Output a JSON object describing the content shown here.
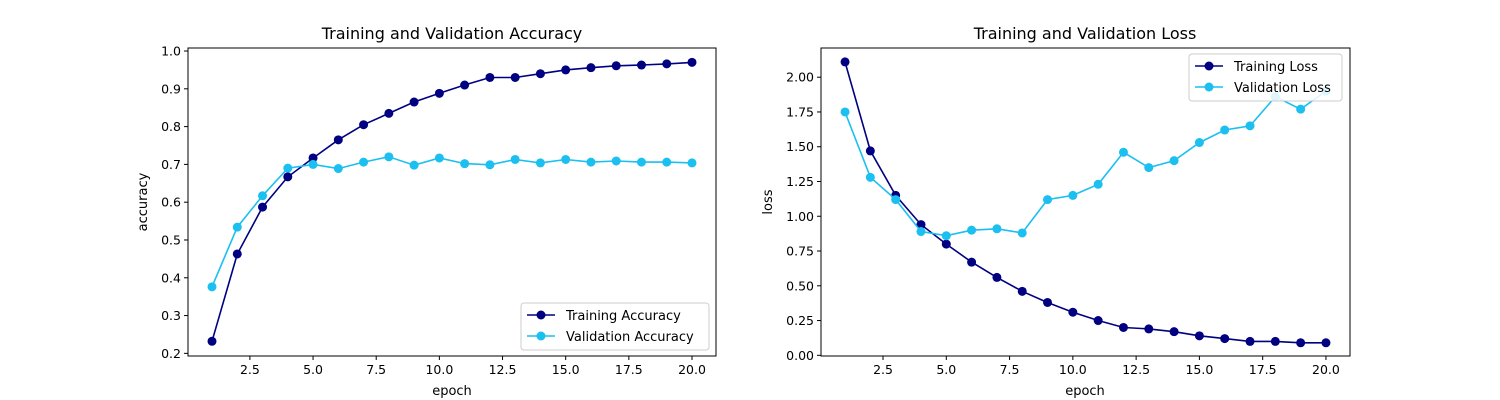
{
  "chart_data": [
    {
      "type": "line",
      "title": "Training and Validation Accuracy",
      "xlabel": "epoch",
      "ylabel": "accuracy",
      "xlim": [
        0.05,
        20.95
      ],
      "ylim": [
        0.193,
        1.008
      ],
      "xticks": [
        2.5,
        5.0,
        7.5,
        10.0,
        12.5,
        15.0,
        17.5,
        20.0
      ],
      "xtick_labels": [
        "2.5",
        "5.0",
        "7.5",
        "10.0",
        "12.5",
        "15.0",
        "17.5",
        "20.0"
      ],
      "yticks": [
        0.2,
        0.3,
        0.4,
        0.5,
        0.6,
        0.7,
        0.8,
        0.9,
        1.0
      ],
      "ytick_labels": [
        "0.2",
        "0.3",
        "0.4",
        "0.5",
        "0.6",
        "0.7",
        "0.8",
        "0.9",
        "1.0"
      ],
      "grid": false,
      "legend_position": "lower-right",
      "x": [
        1,
        2,
        3,
        4,
        5,
        6,
        7,
        8,
        9,
        10,
        11,
        12,
        13,
        14,
        15,
        16,
        17,
        18,
        19,
        20
      ],
      "series": [
        {
          "name": "Training Accuracy",
          "color": "#000080",
          "values": [
            0.232,
            0.463,
            0.587,
            0.667,
            0.717,
            0.765,
            0.805,
            0.835,
            0.865,
            0.888,
            0.91,
            0.93,
            0.93,
            0.94,
            0.95,
            0.956,
            0.961,
            0.963,
            0.966,
            0.97
          ]
        },
        {
          "name": "Validation Accuracy",
          "color": "#1bbff0",
          "values": [
            0.376,
            0.534,
            0.617,
            0.69,
            0.7,
            0.689,
            0.706,
            0.72,
            0.698,
            0.717,
            0.702,
            0.699,
            0.713,
            0.704,
            0.713,
            0.706,
            0.709,
            0.706,
            0.706,
            0.704
          ]
        }
      ]
    },
    {
      "type": "line",
      "title": "Training and Validation Loss",
      "xlabel": "epoch",
      "ylabel": "loss",
      "xlim": [
        0.05,
        20.95
      ],
      "ylim": [
        -0.005,
        2.21
      ],
      "xticks": [
        2.5,
        5.0,
        7.5,
        10.0,
        12.5,
        15.0,
        17.5,
        20.0
      ],
      "xtick_labels": [
        "2.5",
        "5.0",
        "7.5",
        "10.0",
        "12.5",
        "15.0",
        "17.5",
        "20.0"
      ],
      "yticks": [
        0.0,
        0.25,
        0.5,
        0.75,
        1.0,
        1.25,
        1.5,
        1.75,
        2.0
      ],
      "ytick_labels": [
        "0.00",
        "0.25",
        "0.50",
        "0.75",
        "1.00",
        "1.25",
        "1.50",
        "1.75",
        "2.00"
      ],
      "grid": false,
      "legend_position": "upper-right",
      "x": [
        1,
        2,
        3,
        4,
        5,
        6,
        7,
        8,
        9,
        10,
        11,
        12,
        13,
        14,
        15,
        16,
        17,
        18,
        19,
        20
      ],
      "series": [
        {
          "name": "Training Loss",
          "color": "#000080",
          "values": [
            2.11,
            1.47,
            1.15,
            0.94,
            0.8,
            0.67,
            0.56,
            0.46,
            0.38,
            0.31,
            0.25,
            0.2,
            0.19,
            0.17,
            0.14,
            0.12,
            0.1,
            0.1,
            0.09,
            0.09
          ]
        },
        {
          "name": "Validation Loss",
          "color": "#1bbff0",
          "values": [
            1.75,
            1.28,
            1.12,
            0.89,
            0.86,
            0.9,
            0.91,
            0.88,
            1.12,
            1.15,
            1.23,
            1.46,
            1.35,
            1.4,
            1.53,
            1.62,
            1.65,
            1.86,
            1.77,
            1.9
          ]
        }
      ]
    }
  ]
}
